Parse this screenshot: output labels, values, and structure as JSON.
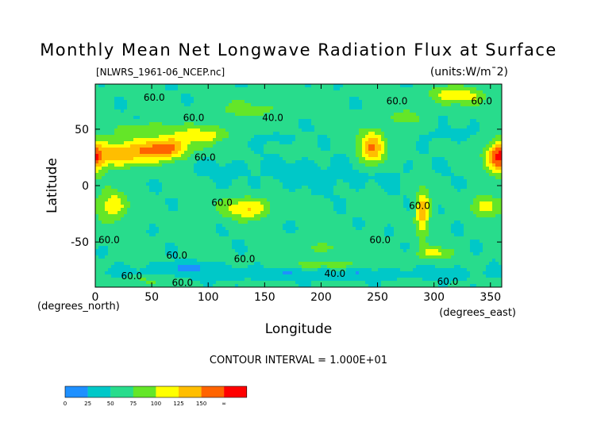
{
  "chart_data": {
    "type": "heatmap",
    "title": "Monthly Mean Net Longwave Radiation Flux at Surface",
    "file_label": "[NLWRS_1961-06_NCEP.nc]",
    "units_label": "(units:W/m¯2)",
    "xlabel": "Longitude",
    "ylabel": "Latitude",
    "x_unit_label": "(degrees_east)",
    "y_unit_label": "(degrees_north)",
    "xlim": [
      0,
      360
    ],
    "ylim": [
      -90,
      90
    ],
    "x_ticks": [
      0,
      50,
      100,
      150,
      200,
      250,
      300,
      350
    ],
    "y_ticks": [
      50,
      0,
      -50
    ],
    "contour_interval_label": "CONTOUR INTERVAL = 1.000E+01",
    "contour_labels": [
      "60.0",
      "60.0",
      "60.0",
      "40.0",
      "60.0",
      "60.0",
      "60.0",
      "60.0",
      "60.0",
      "60.0",
      "60.0",
      "60.0",
      "40.0",
      "60.0",
      "60.0",
      "60.0"
    ],
    "colorbar": {
      "tick_labels": [
        "0",
        "25",
        "50",
        "75",
        "100",
        "125",
        "150",
        "∞"
      ],
      "colors": [
        "#1e90ff",
        "#00c8c8",
        "#28dc8c",
        "#64e628",
        "#ffff00",
        "#ffbe00",
        "#ff6400",
        "#ff0000"
      ]
    },
    "value_field": {
      "background": 55,
      "features": [
        {
          "lon": 22,
          "lat": 28,
          "rx": 28,
          "ry": 12,
          "value": 140
        },
        {
          "lon": 62,
          "lat": 33,
          "rx": 22,
          "ry": 10,
          "value": 160
        },
        {
          "lon": 95,
          "lat": 45,
          "rx": 25,
          "ry": 8,
          "value": 110
        },
        {
          "lon": 45,
          "lat": 50,
          "rx": 25,
          "ry": 6,
          "value": 95
        },
        {
          "lon": 135,
          "lat": 68,
          "rx": 35,
          "ry": 8,
          "value": 85
        },
        {
          "lon": 245,
          "lat": 33,
          "rx": 12,
          "ry": 16,
          "value": 150
        },
        {
          "lon": 275,
          "lat": 60,
          "rx": 12,
          "ry": 6,
          "value": 100
        },
        {
          "lon": 320,
          "lat": 80,
          "rx": 25,
          "ry": 8,
          "value": 120
        },
        {
          "lon": 357,
          "lat": 25,
          "rx": 10,
          "ry": 14,
          "value": 150
        },
        {
          "lon": 15,
          "lat": -18,
          "rx": 13,
          "ry": 14,
          "value": 120
        },
        {
          "lon": 135,
          "lat": -20,
          "rx": 22,
          "ry": 10,
          "value": 125
        },
        {
          "lon": 290,
          "lat": -23,
          "rx": 6,
          "ry": 20,
          "value": 145
        },
        {
          "lon": 345,
          "lat": -18,
          "rx": 12,
          "ry": 10,
          "value": 115
        },
        {
          "lon": 210,
          "lat": 10,
          "rx": 70,
          "ry": 14,
          "value": 40
        },
        {
          "lon": 110,
          "lat": 15,
          "rx": 40,
          "ry": 8,
          "value": 45
        },
        {
          "lon": 310,
          "lat": 45,
          "rx": 20,
          "ry": 6,
          "value": 40
        },
        {
          "lon": 160,
          "lat": 42,
          "rx": 15,
          "ry": 5,
          "value": 35
        },
        {
          "lon": 180,
          "lat": -78,
          "rx": 170,
          "ry": 5,
          "value": 30
        },
        {
          "lon": 80,
          "lat": -72,
          "rx": 30,
          "ry": 4,
          "value": 25
        },
        {
          "lon": 210,
          "lat": -70,
          "rx": 40,
          "ry": 4,
          "value": 90
        },
        {
          "lon": 300,
          "lat": -60,
          "rx": 15,
          "ry": 6,
          "value": 110
        },
        {
          "lon": 200,
          "lat": -55,
          "rx": 20,
          "ry": 5,
          "value": 85
        },
        {
          "lon": 40,
          "lat": -84,
          "rx": 25,
          "ry": 4,
          "value": 85
        }
      ]
    }
  }
}
